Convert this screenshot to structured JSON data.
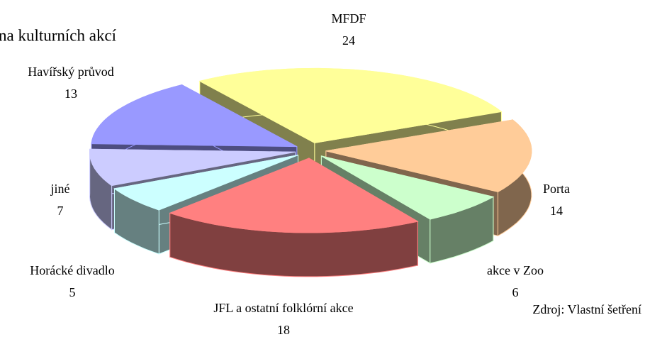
{
  "chart_data": {
    "type": "pie3d",
    "title": "na kulturních akcí",
    "source": "Zdroj: Vlastní šetření",
    "categories": [
      "MFDF",
      "Porta",
      "akce v Zoo",
      "JFL a ostatní folklórní akce",
      "Horácké divadlo",
      "jiné",
      "Havířský průvod"
    ],
    "values": [
      24,
      14,
      6,
      18,
      5,
      7,
      13
    ],
    "colors": [
      "#ffff99",
      "#ffcc99",
      "#ccffcc",
      "#ff8080",
      "#ccffff",
      "#ccccff",
      "#9999ff"
    ]
  }
}
